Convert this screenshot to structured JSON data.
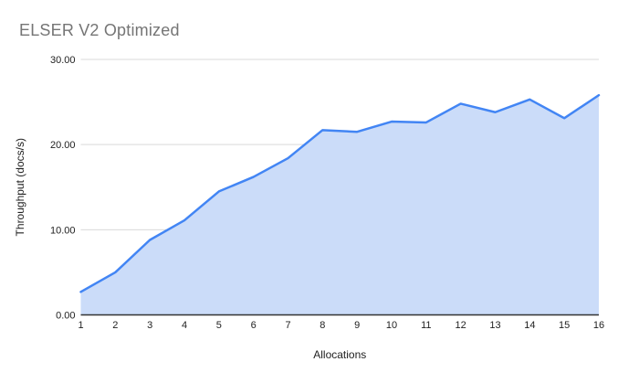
{
  "chart_data": {
    "type": "area",
    "title": "ELSER V2 Optimized",
    "xlabel": "Allocations",
    "ylabel": "Throughput (docs/s)",
    "categories": [
      "1",
      "2",
      "3",
      "4",
      "5",
      "6",
      "7",
      "8",
      "9",
      "10",
      "11",
      "12",
      "13",
      "14",
      "15",
      "16"
    ],
    "values": [
      2.7,
      5.0,
      8.8,
      11.1,
      14.5,
      16.2,
      18.4,
      21.7,
      21.5,
      22.7,
      22.6,
      24.8,
      23.8,
      25.3,
      23.1,
      25.8
    ],
    "ylim": [
      0,
      30
    ],
    "ytick_values": [
      0,
      10,
      20,
      30
    ],
    "ytick_labels": [
      "0.00",
      "10.00",
      "20.00",
      "30.00"
    ],
    "grid": true,
    "legend": "none",
    "colors": {
      "line": "#4285f4",
      "fill": "#cbdcf9",
      "grid": "#d9d9d9",
      "axis": "#333333",
      "title": "#757575",
      "tick_label": "#212121",
      "axis_title": "#212121",
      "background": "#ffffff"
    }
  }
}
